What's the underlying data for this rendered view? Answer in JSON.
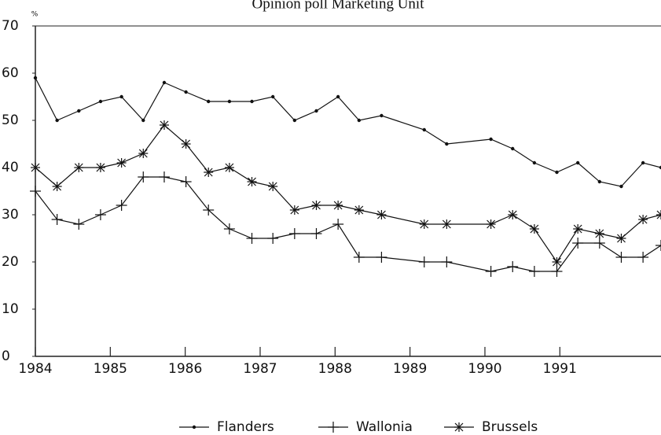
{
  "chart_data": {
    "type": "line",
    "title": "Opinion poll Marketing Unit",
    "y_unit": "%",
    "x": [
      1984,
      1984.29,
      1984.58,
      1984.87,
      1985.15,
      1985.44,
      1985.72,
      1986.01,
      1986.31,
      1986.59,
      1986.89,
      1987.17,
      1987.46,
      1987.75,
      1988.04,
      1988.32,
      1988.62,
      1989.19,
      1989.49,
      1990.08,
      1990.37,
      1990.66,
      1990.96,
      1991.24,
      1991.53,
      1991.82,
      1992.11,
      1992.35
    ],
    "series": [
      {
        "name": "Flanders",
        "color": "#111",
        "marker": "dot",
        "values": [
          59,
          50,
          52,
          54,
          55,
          50,
          58,
          56,
          54,
          54,
          54,
          55,
          50,
          52,
          55,
          50,
          51,
          48,
          45,
          46,
          44,
          41,
          39,
          41,
          37,
          36,
          41,
          40
        ]
      },
      {
        "name": "Wallonia",
        "color": "#111",
        "marker": "plus",
        "values": [
          35,
          29,
          28,
          30,
          32,
          38,
          38,
          37,
          31,
          27,
          25,
          25,
          26,
          26,
          28,
          21,
          21,
          20,
          20,
          18,
          19,
          18,
          18,
          24,
          24,
          21,
          21,
          23.5
        ]
      },
      {
        "name": "Brussels",
        "color": "#111",
        "marker": "asterisk",
        "values": [
          40,
          36,
          40,
          40,
          41,
          43,
          49,
          45,
          39,
          40,
          37,
          36,
          31,
          32,
          32,
          31,
          30,
          28,
          28,
          28,
          30,
          27,
          20,
          27,
          26,
          25,
          29,
          30
        ]
      }
    ],
    "xlim": [
      1984,
      1992.35
    ],
    "xticks": [
      1984,
      1985,
      1986,
      1987,
      1988,
      1989,
      1990,
      1991
    ],
    "ylim": [
      0,
      70
    ],
    "yticks": [
      0,
      10,
      20,
      30,
      40,
      50,
      60,
      70
    ],
    "legend": "bottom"
  }
}
